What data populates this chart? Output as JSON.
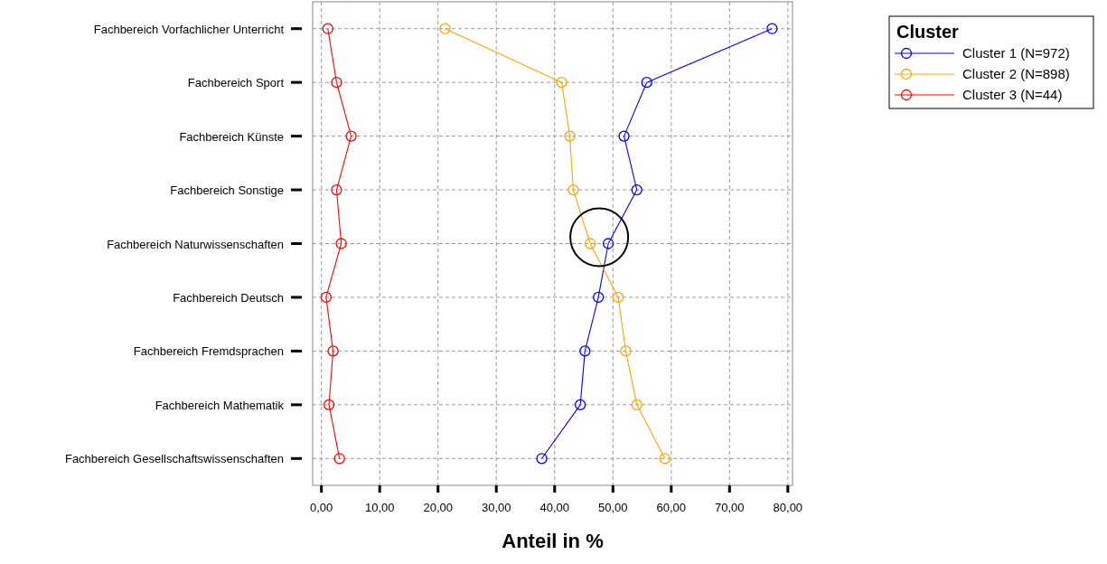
{
  "chart_data": {
    "type": "line",
    "orientation": "horizontal",
    "xlabel": "Anteil in %",
    "legend_title": "Cluster",
    "legend": "top right",
    "grid": true,
    "marker": "circle",
    "line_style": "solid",
    "categories": [
      "Fachbereich Vorfachlicher Unterricht",
      "Fachbereich Sport",
      "Fachbereich Künste",
      "Fachbereich Sonstige",
      "Fachbereich Naturwissenschaften",
      "Fachbereich Deutsch",
      "Fachbereich Fremdsprachen",
      "Fachbereich Mathematik",
      "Fachbereich Gesellschaftswissenschaften"
    ],
    "xlim": [
      -1.5,
      80.8
    ],
    "xticks": [
      {
        "value": 0,
        "label": "0,00"
      },
      {
        "value": 10,
        "label": "10,00"
      },
      {
        "value": 20,
        "label": "20,00"
      },
      {
        "value": 30,
        "label": "30,00"
      },
      {
        "value": 40,
        "label": "40,00"
      },
      {
        "value": 50,
        "label": "50,00"
      },
      {
        "value": 60,
        "label": "60,00"
      },
      {
        "value": 70,
        "label": "70,00"
      },
      {
        "value": 80,
        "label": "80,00"
      }
    ],
    "series": [
      {
        "name": "Cluster 1 (N=972)",
        "color": "#0000ff",
        "values": [
          77.3,
          55.8,
          51.9,
          54.1,
          49.2,
          47.5,
          45.2,
          44.4,
          37.8
        ]
      },
      {
        "name": "Cluster 2 (N=898)",
        "color": "#ffa500",
        "values": [
          21.2,
          41.2,
          42.6,
          43.2,
          46.1,
          50.9,
          52.2,
          54.1,
          58.9
        ]
      },
      {
        "name": "Cluster 3 (N=44)",
        "color": "#ff0000",
        "values": [
          1.1,
          2.6,
          5.1,
          2.6,
          3.4,
          0.8,
          2.0,
          1.3,
          3.1
        ]
      }
    ]
  }
}
